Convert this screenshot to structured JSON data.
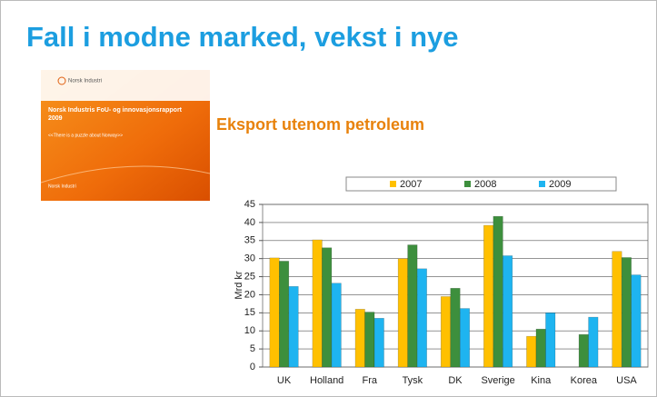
{
  "slide": {
    "title": "Fall i modne marked, vekst i nye",
    "cover": {
      "logo": "Norsk Industri",
      "heading": "Norsk Industris FoU- og innovasjonsrapport 2009",
      "quote": "<<There is a puzzle about Norway>>",
      "footer": "Norsk Industri"
    }
  },
  "chart_data": {
    "type": "bar",
    "title": "Eksport utenom petroleum",
    "y_label": "Mrd kr",
    "categories": [
      "UK",
      "Holland",
      "Fra",
      "Tysk",
      "DK",
      "Sverige",
      "Kina",
      "Korea",
      "USA"
    ],
    "series": [
      {
        "name": "2007",
        "color": "#ffc000",
        "values": [
          30.2,
          35.2,
          16,
          30,
          19.5,
          39.2,
          8.5,
          0,
          32
        ]
      },
      {
        "name": "2008",
        "color": "#3d8f3d",
        "values": [
          29.3,
          33,
          15.2,
          33.8,
          21.8,
          41.7,
          10.5,
          9,
          30.3
        ]
      },
      {
        "name": "2009",
        "color": "#1eb4f0",
        "values": [
          22.3,
          23.2,
          13.5,
          27.2,
          16.2,
          30.8,
          15,
          13.8,
          25.5
        ]
      }
    ],
    "ylim": [
      0,
      45
    ],
    "yticks": [
      0,
      5,
      10,
      15,
      20,
      25,
      30,
      35,
      40,
      45
    ],
    "grid": true,
    "legend": "top"
  }
}
